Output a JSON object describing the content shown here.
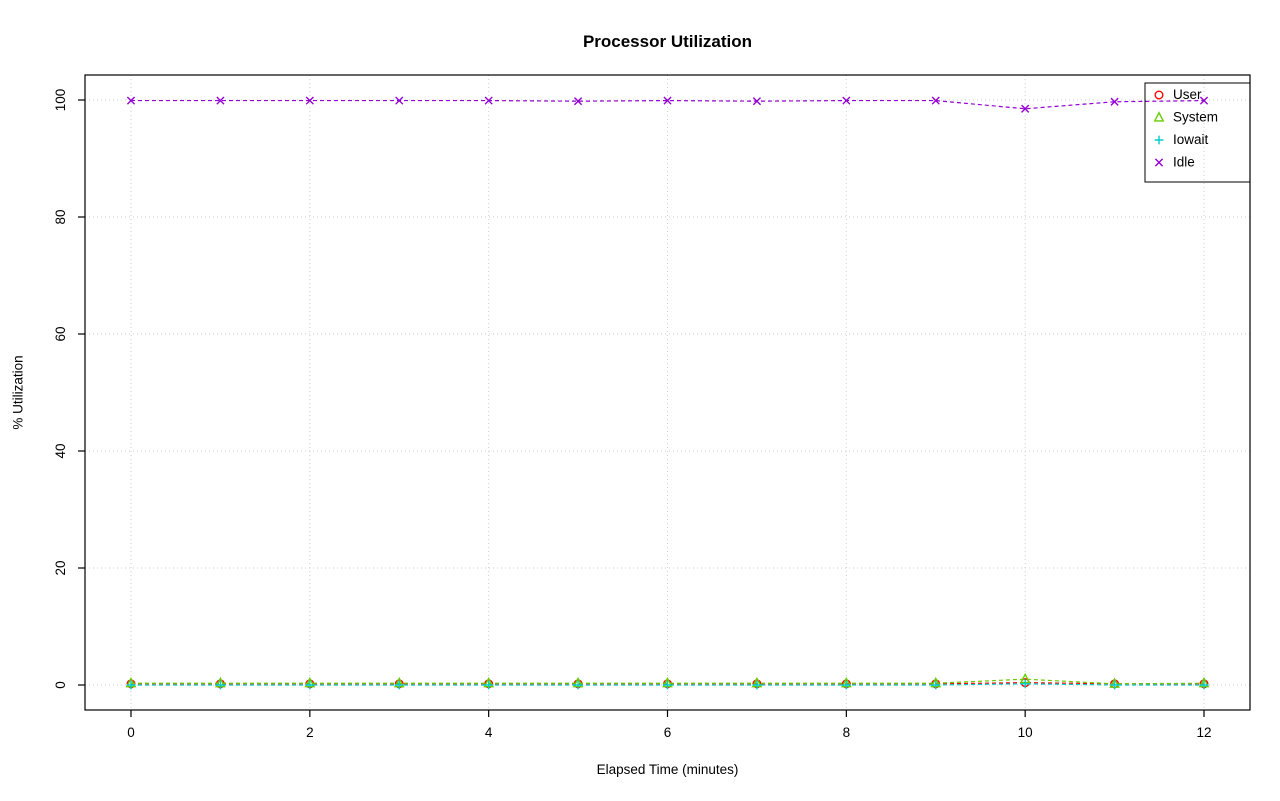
{
  "title": "Processor Utilization",
  "xlabel": "Elapsed Time (minutes)",
  "ylabel": "% Utilization",
  "chart_data": {
    "type": "line",
    "title": "Processor Utilization",
    "xlabel": "Elapsed Time (minutes)",
    "ylabel": "% Utilization",
    "xlim": [
      0,
      12
    ],
    "ylim": [
      0,
      100
    ],
    "xticks": [
      0,
      2,
      4,
      6,
      8,
      10,
      12
    ],
    "yticks": [
      0,
      20,
      40,
      60,
      80,
      100
    ],
    "grid": true,
    "grid_color": "#cdcdcd",
    "axis_color": "#000000",
    "legend_position": "top-right",
    "x": [
      0,
      1,
      2,
      3,
      4,
      5,
      6,
      7,
      8,
      9,
      10,
      11,
      12
    ],
    "series": [
      {
        "name": "User",
        "marker": "circle",
        "color": "#ff0000",
        "values": [
          0.2,
          0.2,
          0.2,
          0.2,
          0.2,
          0.2,
          0.2,
          0.2,
          0.2,
          0.2,
          0.4,
          0.2,
          0.2
        ]
      },
      {
        "name": "System",
        "marker": "triangle",
        "color": "#66cd00",
        "values": [
          0.3,
          0.3,
          0.3,
          0.3,
          0.3,
          0.3,
          0.3,
          0.3,
          0.3,
          0.3,
          1.0,
          0.2,
          0.3
        ]
      },
      {
        "name": "Iowait",
        "marker": "plus",
        "color": "#00cdcd",
        "values": [
          0,
          0,
          0,
          0,
          0,
          0,
          0,
          0,
          0,
          0,
          0.2,
          0,
          0
        ]
      },
      {
        "name": "Idle",
        "marker": "x",
        "color": "#9400d3",
        "values": [
          99.9,
          99.9,
          99.9,
          99.9,
          99.9,
          99.8,
          99.9,
          99.8,
          99.9,
          99.9,
          98.5,
          99.7,
          99.9
        ]
      }
    ]
  }
}
